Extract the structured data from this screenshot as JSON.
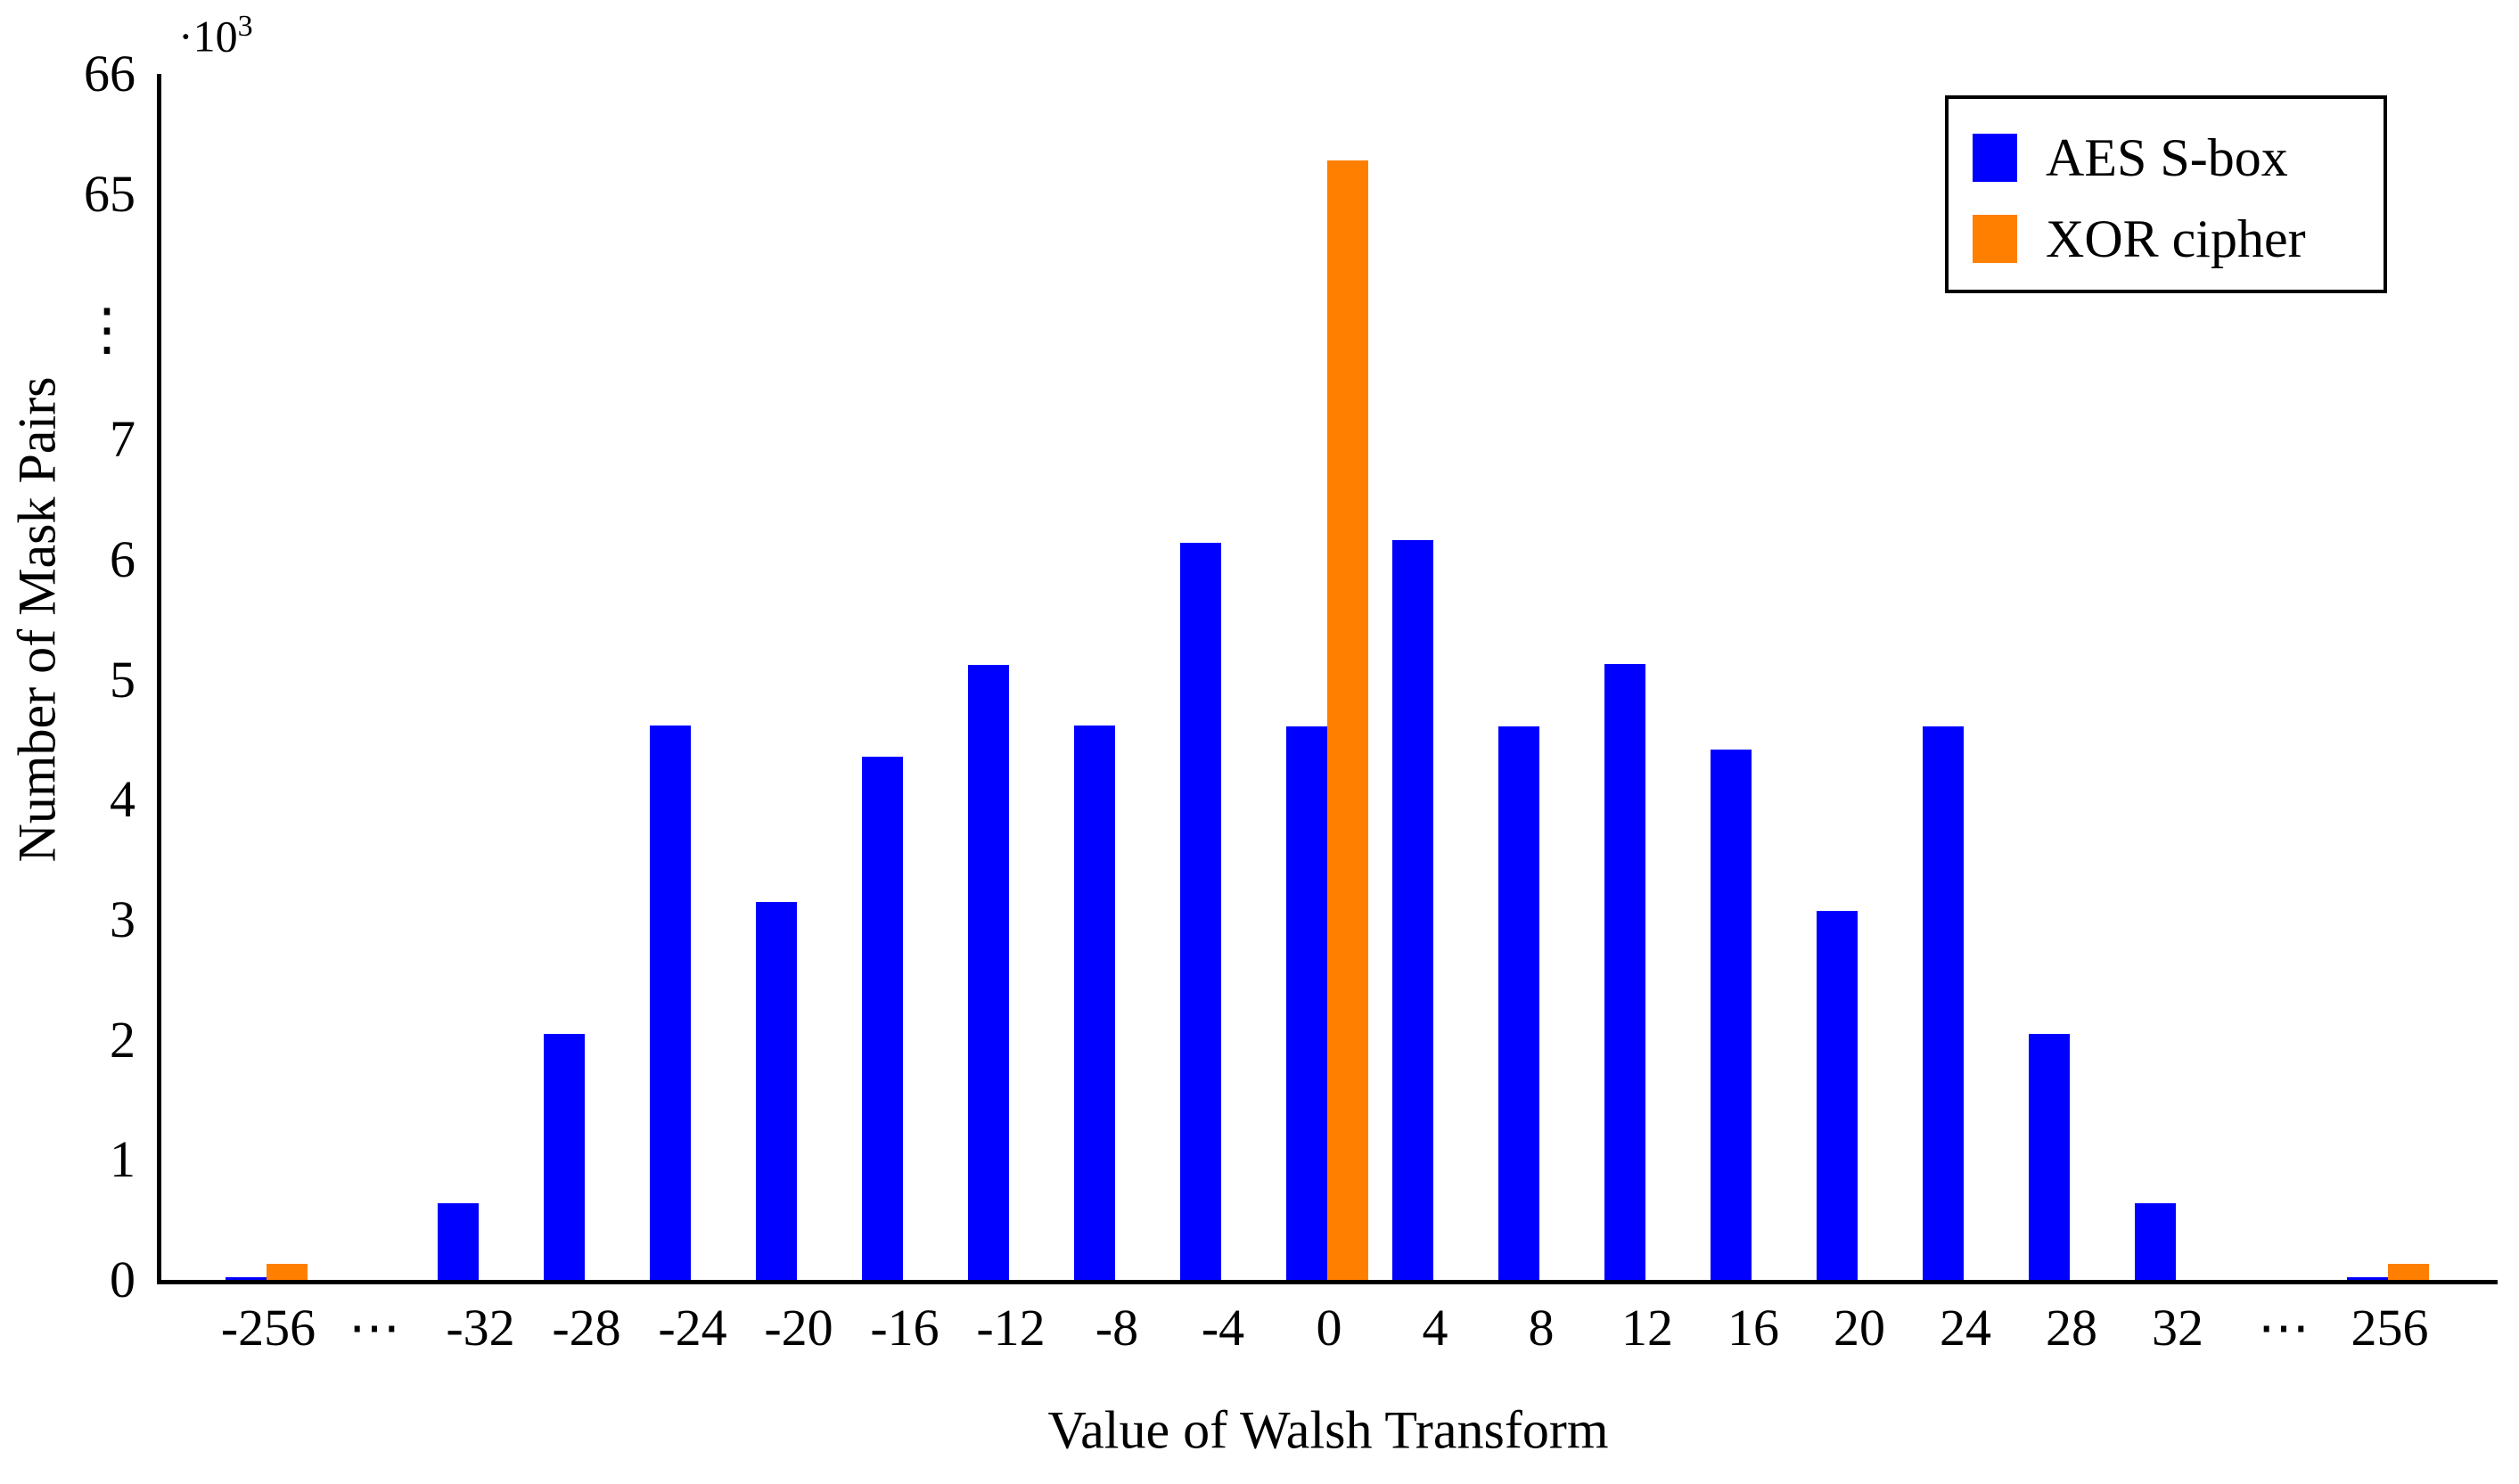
{
  "chart_data": {
    "type": "bar",
    "title": "",
    "xlabel": "Value of Walsh Transform",
    "ylabel": "Number of Mask Pairs",
    "y_scale_label_base": "·10",
    "y_scale_label_exponent": "3",
    "y_unit": 1000,
    "grid": false,
    "legend_position": "top-right",
    "axis_color": "#000000",
    "background_color": "#ffffff",
    "y_axis_break": true,
    "y_break_symbol": "⋮",
    "y_ticks_lower_k": [
      0,
      1,
      2,
      3,
      4,
      5,
      6,
      7
    ],
    "y_ticks_upper_k": [
      65,
      66
    ],
    "categories": [
      "-256",
      "⋯",
      "-32",
      "-28",
      "-24",
      "-20",
      "-16",
      "-12",
      "-8",
      "-4",
      "0",
      "4",
      "8",
      "12",
      "16",
      "20",
      "24",
      "28",
      "32",
      "⋯",
      "256"
    ],
    "series": [
      {
        "name": "AES S-box",
        "color": "#0000ff",
        "values_k": [
          0,
          null,
          0.64,
          2.05,
          4.62,
          3.15,
          4.36,
          5.12,
          4.62,
          6.14,
          4.61,
          6.16,
          4.61,
          5.13,
          4.42,
          3.07,
          4.61,
          2.05,
          0.64,
          null,
          0
        ]
      },
      {
        "name": "XOR cipher",
        "color": "#ff8000",
        "values_k": [
          0.13,
          null,
          null,
          null,
          null,
          null,
          null,
          null,
          null,
          null,
          65.28,
          null,
          null,
          null,
          null,
          null,
          null,
          null,
          null,
          null,
          0.13
        ]
      }
    ]
  }
}
